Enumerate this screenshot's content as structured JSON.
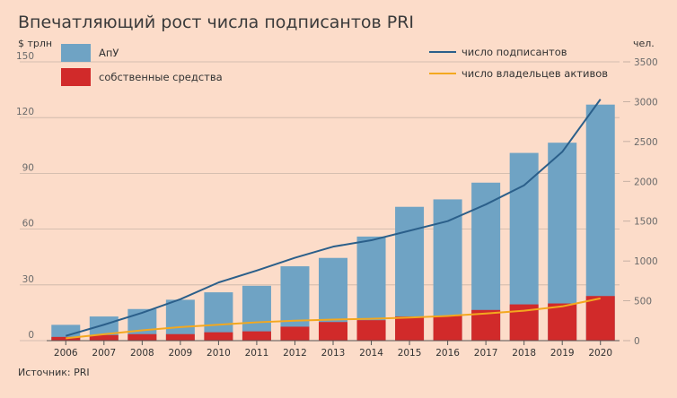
{
  "title": "Впечатляющий рост числа подписантов PRI",
  "source": "Источник: PRI",
  "colors": {
    "background": "#fcdcc9",
    "aum": "#6fa3c4",
    "own": "#d12a2a",
    "signatories": "#2b5f8a",
    "owners": "#f3a81f"
  },
  "chart_data": {
    "type": "bar",
    "title": "Впечатляющий рост числа подписантов PRI",
    "ylabel_left": "$ трлн",
    "ylabel_right": "чел.",
    "ylim_left": [
      0,
      150
    ],
    "ylim_right": [
      0,
      3500
    ],
    "yticks_left": [
      0,
      30,
      60,
      90,
      120,
      150
    ],
    "yticks_right": [
      0,
      500,
      1000,
      1500,
      2000,
      2500,
      3000,
      3500
    ],
    "categories": [
      "2006",
      "2007",
      "2008",
      "2009",
      "2010",
      "2011",
      "2012",
      "2013",
      "2014",
      "2015",
      "2016",
      "2017",
      "2018",
      "2019",
      "2020"
    ],
    "series": [
      {
        "name": "АпУ",
        "kind": "bar",
        "axis": "left",
        "values": [
          8.5,
          13,
          17,
          22,
          26,
          29.5,
          40,
          44.5,
          56,
          72,
          76,
          85,
          101,
          106.5,
          127
        ]
      },
      {
        "name": "собственные средства",
        "kind": "bar",
        "axis": "left",
        "values": [
          2,
          3,
          3.5,
          3.5,
          4.5,
          5,
          7.5,
          10,
          11,
          13,
          13.5,
          16.5,
          19.5,
          20,
          24
        ]
      },
      {
        "name": "число подписантов",
        "kind": "line",
        "axis": "right",
        "values": [
          60,
          200,
          350,
          520,
          730,
          880,
          1040,
          1180,
          1260,
          1380,
          1500,
          1710,
          1950,
          2370,
          3030
        ]
      },
      {
        "name": "число владельцев активов",
        "kind": "line",
        "axis": "right",
        "values": [
          30,
          80,
          130,
          170,
          200,
          230,
          250,
          265,
          275,
          290,
          310,
          340,
          375,
          430,
          530
        ]
      }
    ],
    "legend": [
      "top-left",
      "top-right"
    ],
    "grid": true
  }
}
